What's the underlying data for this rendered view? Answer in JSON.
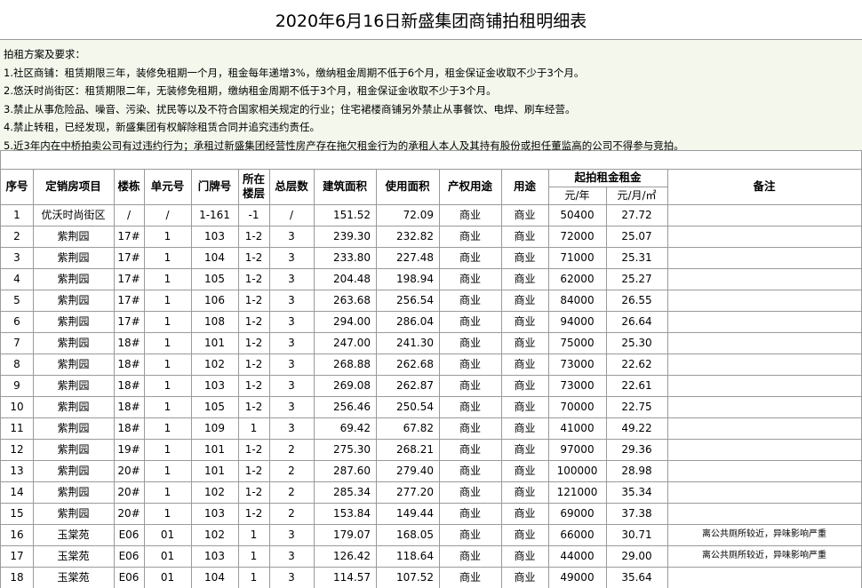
{
  "title": "2020年6月16日新盛集团商铺拍租明细表",
  "requirements": [
    "拍租方案及要求：",
    "1.社区商铺：租赁期限三年，装修免租期一个月，租金每年递增3%，缴纳租金周期不低于6个月，租金保证金收取不少于3个月。",
    "2.悠沃时尚街区：租赁期限二年，无装修免租期，缴纳租金周期不低于3个月，租金保证金收取不少于3个月。",
    "3.禁止从事危险品、噪音、污染、扰民等以及不符合国家相关规定的行业；住宅裙楼商铺另外禁止从事餐饮、电焊、刷车经营。",
    "4.禁止转租，已经发现，新盛集团有权解除租赁合同并追究违约责任。",
    "5.近3年内在中桥拍卖公司有过违约行为；承租过新盛集团经营性房产存在拖欠租金行为的承租人本人及其持有股份或担任董监高的公司不得参与竞拍。"
  ],
  "table": {
    "headers": [
      "序号",
      "定销房项目",
      "楼栋",
      "单元号",
      "门牌号",
      "所在楼层",
      "总层数",
      "建筑面积",
      "使用面积",
      "产权用途",
      "用途"
    ],
    "rent_group": {
      "label": "起拍租金租金",
      "sub": [
        "元/年",
        "元/月/㎡"
      ]
    },
    "remark_header": "备注",
    "rows": [
      [
        "1",
        "优沃时尚街区",
        "/",
        "/",
        "1-161",
        "-1",
        "/",
        "151.52",
        "72.09",
        "商业",
        "商业",
        "50400",
        "27.72"
      ],
      [
        "2",
        "紫荆园",
        "17#",
        "1",
        "103",
        "1-2",
        "3",
        "239.30",
        "232.82",
        "商业",
        "商业",
        "72000",
        "25.07"
      ],
      [
        "3",
        "紫荆园",
        "17#",
        "1",
        "104",
        "1-2",
        "3",
        "233.80",
        "227.48",
        "商业",
        "商业",
        "71000",
        "25.31"
      ],
      [
        "4",
        "紫荆园",
        "17#",
        "1",
        "105",
        "1-2",
        "3",
        "204.48",
        "198.94",
        "商业",
        "商业",
        "62000",
        "25.27"
      ],
      [
        "5",
        "紫荆园",
        "17#",
        "1",
        "106",
        "1-2",
        "3",
        "263.68",
        "256.54",
        "商业",
        "商业",
        "84000",
        "26.55"
      ],
      [
        "6",
        "紫荆园",
        "17#",
        "1",
        "108",
        "1-2",
        "3",
        "294.00",
        "286.04",
        "商业",
        "商业",
        "94000",
        "26.64"
      ],
      [
        "7",
        "紫荆园",
        "18#",
        "1",
        "101",
        "1-2",
        "3",
        "247.00",
        "241.30",
        "商业",
        "商业",
        "75000",
        "25.30"
      ],
      [
        "8",
        "紫荆园",
        "18#",
        "1",
        "102",
        "1-2",
        "3",
        "268.88",
        "262.68",
        "商业",
        "商业",
        "73000",
        "22.62"
      ],
      [
        "9",
        "紫荆园",
        "18#",
        "1",
        "103",
        "1-2",
        "3",
        "269.08",
        "262.87",
        "商业",
        "商业",
        "73000",
        "22.61"
      ],
      [
        "10",
        "紫荆园",
        "18#",
        "1",
        "105",
        "1-2",
        "3",
        "256.46",
        "250.54",
        "商业",
        "商业",
        "70000",
        "22.75"
      ],
      [
        "11",
        "紫荆园",
        "18#",
        "1",
        "109",
        "1",
        "3",
        "69.42",
        "67.82",
        "商业",
        "商业",
        "41000",
        "49.22"
      ],
      [
        "12",
        "紫荆园",
        "19#",
        "1",
        "101",
        "1-2",
        "2",
        "275.30",
        "268.21",
        "商业",
        "商业",
        "97000",
        "29.36"
      ],
      [
        "13",
        "紫荆园",
        "20#",
        "1",
        "101",
        "1-2",
        "2",
        "287.60",
        "279.40",
        "商业",
        "商业",
        "100000",
        "28.98"
      ],
      [
        "14",
        "紫荆园",
        "20#",
        "1",
        "102",
        "1-2",
        "2",
        "285.34",
        "277.20",
        "商业",
        "商业",
        "121000",
        "35.34"
      ],
      [
        "15",
        "紫荆园",
        "20#",
        "1",
        "103",
        "1-2",
        "2",
        "153.84",
        "149.44",
        "商业",
        "商业",
        "69000",
        "37.38"
      ],
      [
        "16",
        "玉棠苑",
        "E06",
        "01",
        "102",
        "1",
        "3",
        "179.07",
        "168.05",
        "商业",
        "商业",
        "66000",
        "30.71",
        "离公共厕所较近，异味影响严重"
      ],
      [
        "17",
        "玉棠苑",
        "E06",
        "01",
        "103",
        "1",
        "3",
        "126.42",
        "118.64",
        "商业",
        "商业",
        "44000",
        "29.00",
        "离公共厕所较近，异味影响严重"
      ],
      [
        "18",
        "玉棠苑",
        "E06",
        "01",
        "104",
        "1",
        "3",
        "114.57",
        "107.52",
        "商业",
        "商业",
        "49000",
        "35.64"
      ]
    ]
  }
}
